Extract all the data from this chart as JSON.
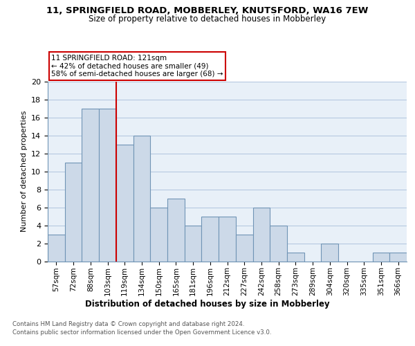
{
  "title": "11, SPRINGFIELD ROAD, MOBBERLEY, KNUTSFORD, WA16 7EW",
  "subtitle": "Size of property relative to detached houses in Mobberley",
  "xlabel": "Distribution of detached houses by size in Mobberley",
  "ylabel": "Number of detached properties",
  "categories": [
    "57sqm",
    "72sqm",
    "88sqm",
    "103sqm",
    "119sqm",
    "134sqm",
    "150sqm",
    "165sqm",
    "181sqm",
    "196sqm",
    "212sqm",
    "227sqm",
    "242sqm",
    "258sqm",
    "273sqm",
    "289sqm",
    "304sqm",
    "320sqm",
    "335sqm",
    "351sqm",
    "366sqm"
  ],
  "values": [
    3,
    11,
    17,
    17,
    13,
    14,
    6,
    7,
    4,
    5,
    5,
    3,
    6,
    4,
    1,
    0,
    2,
    0,
    0,
    1,
    1
  ],
  "bar_color": "#ccd9e8",
  "bar_edge_color": "#7094b5",
  "annotation_text": "11 SPRINGFIELD ROAD: 121sqm\n← 42% of detached houses are smaller (49)\n58% of semi-detached houses are larger (68) →",
  "annotation_box_color": "#ffffff",
  "annotation_box_edge_color": "#cc0000",
  "vline_color": "#cc0000",
  "vline_pos": 3.5,
  "ylim": [
    0,
    20
  ],
  "yticks": [
    0,
    2,
    4,
    6,
    8,
    10,
    12,
    14,
    16,
    18,
    20
  ],
  "grid_color": "#b0c4de",
  "background_color": "#e8f0f8",
  "footer_line1": "Contains HM Land Registry data © Crown copyright and database right 2024.",
  "footer_line2": "Contains public sector information licensed under the Open Government Licence v3.0."
}
